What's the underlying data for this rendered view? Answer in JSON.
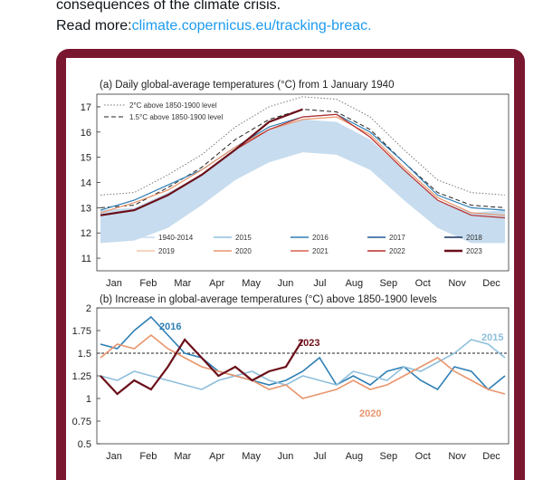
{
  "post": {
    "text_line1": "consequences of the climate crisis.",
    "read_more_label": "Read more:",
    "link_text": "climate.copernicus.eu/tracking-breac."
  },
  "colors": {
    "frame": "#7a1730",
    "link": "#1d9bf0",
    "band_1940_2014": "#c7dcee",
    "y2015": "#8fbfdc",
    "y2016": "#2f7fb5",
    "y2017": "#1f5b95",
    "y2018": "#14305e",
    "y2019": "#f3c5a8",
    "y2020": "#e9956c",
    "y2021": "#d9624e",
    "y2022": "#b92e2e",
    "y2023": "#6b0f1a"
  },
  "chart_data": [
    {
      "type": "line",
      "title": "(a) Daily global-average temperatures (°C) from 1 January 1940",
      "x_tick_labels": [
        "Jan",
        "Feb",
        "Mar",
        "Apr",
        "May",
        "Jun",
        "Jul",
        "Aug",
        "Sep",
        "Oct",
        "Nov",
        "Dec"
      ],
      "y_tick_labels": [
        "11",
        "12",
        "13",
        "14",
        "15",
        "16",
        "17"
      ],
      "ylim": [
        10.5,
        17.5
      ],
      "reference_lines": [
        {
          "name": "2°C above 1850-1900 level",
          "style": "dotted",
          "values": [
            13.5,
            13.6,
            14.3,
            15.1,
            16.2,
            17.0,
            17.4,
            17.3,
            16.6,
            15.3,
            14.1,
            13.6,
            13.5
          ]
        },
        {
          "name": "1.5°C above 1850-1900 level",
          "style": "dashed",
          "values": [
            13.0,
            13.1,
            13.8,
            14.6,
            15.7,
            16.5,
            16.9,
            16.8,
            16.1,
            14.8,
            13.6,
            13.1,
            13.0
          ]
        }
      ],
      "legend": [
        {
          "label": "1940-2014",
          "color_key": "band_1940_2014"
        },
        {
          "label": "2015",
          "color_key": "y2015"
        },
        {
          "label": "2016",
          "color_key": "y2016"
        },
        {
          "label": "2017",
          "color_key": "y2017"
        },
        {
          "label": "2018",
          "color_key": "y2018"
        },
        {
          "label": "2019",
          "color_key": "y2019"
        },
        {
          "label": "2020",
          "color_key": "y2020"
        },
        {
          "label": "2021",
          "color_key": "y2021"
        },
        {
          "label": "2022",
          "color_key": "y2022"
        },
        {
          "label": "2023",
          "color_key": "y2023"
        }
      ],
      "band": {
        "name": "1940-2014",
        "upper": [
          12.9,
          13.0,
          13.6,
          14.3,
          15.3,
          16.1,
          16.5,
          16.4,
          15.7,
          14.5,
          13.3,
          12.8,
          12.9
        ],
        "lower": [
          11.6,
          11.7,
          12.2,
          13.1,
          14.1,
          14.8,
          15.2,
          15.1,
          14.5,
          13.3,
          12.2,
          11.6,
          11.6
        ]
      },
      "series": [
        {
          "name": "2016",
          "color_key": "y2016",
          "values": [
            12.9,
            13.3,
            13.9,
            14.5,
            15.4,
            16.2,
            16.6,
            16.7,
            16.0,
            14.8,
            13.5,
            13.0,
            12.9
          ]
        },
        {
          "name": "2020",
          "color_key": "y2020",
          "values": [
            12.8,
            13.2,
            13.7,
            14.5,
            15.4,
            16.1,
            16.5,
            16.6,
            15.9,
            14.6,
            13.4,
            12.8,
            12.7
          ]
        },
        {
          "name": "2022",
          "color_key": "y2022",
          "values": [
            12.7,
            12.9,
            13.5,
            14.3,
            15.3,
            16.1,
            16.6,
            16.7,
            15.8,
            14.5,
            13.3,
            12.7,
            12.6
          ]
        },
        {
          "name": "2023",
          "color_key": "y2023",
          "values": [
            12.7,
            12.9,
            13.5,
            14.3,
            15.3,
            16.4,
            16.9
          ]
        }
      ]
    },
    {
      "type": "line",
      "title": "(b) Increase in global-average temperatures (°C) above 1850-1900 levels",
      "x_tick_labels": [
        "Jan",
        "Feb",
        "Mar",
        "Apr",
        "May",
        "Jun",
        "Jul",
        "Aug",
        "Sep",
        "Oct",
        "Nov",
        "Dec"
      ],
      "y_tick_labels": [
        "0.5",
        "0.75",
        "1",
        "1.25",
        "1.5",
        "1.75",
        "2"
      ],
      "ylim": [
        0.5,
        2.0
      ],
      "reference_line": {
        "value": 1.5,
        "style": "dashed"
      },
      "annotations": [
        "2016",
        "2015",
        "2023",
        "2020"
      ],
      "series": [
        {
          "name": "2016",
          "color_key": "y2016",
          "values": [
            1.6,
            1.55,
            1.75,
            1.9,
            1.7,
            1.5,
            1.45,
            1.3,
            1.25,
            1.2,
            1.15,
            1.2,
            1.3,
            1.45,
            1.15,
            1.25,
            1.15,
            1.3,
            1.35,
            1.2,
            1.1,
            1.35,
            1.3,
            1.1,
            1.25
          ]
        },
        {
          "name": "2015",
          "color_key": "y2015",
          "values": [
            1.25,
            1.2,
            1.3,
            1.25,
            1.2,
            1.15,
            1.1,
            1.2,
            1.25,
            1.3,
            1.2,
            1.15,
            1.25,
            1.2,
            1.15,
            1.3,
            1.25,
            1.2,
            1.35,
            1.3,
            1.4,
            1.5,
            1.65,
            1.6,
            1.45
          ]
        },
        {
          "name": "2020",
          "color_key": "y2020",
          "values": [
            1.45,
            1.6,
            1.55,
            1.7,
            1.55,
            1.45,
            1.35,
            1.3,
            1.25,
            1.2,
            1.1,
            1.15,
            1.0,
            1.05,
            1.1,
            1.2,
            1.1,
            1.15,
            1.25,
            1.35,
            1.45,
            1.3,
            1.2,
            1.1,
            1.05
          ]
        },
        {
          "name": "2023",
          "color_key": "y2023",
          "values": [
            1.25,
            1.05,
            1.2,
            1.1,
            1.35,
            1.65,
            1.45,
            1.25,
            1.35,
            1.2,
            1.3,
            1.35,
            1.65
          ]
        }
      ]
    }
  ]
}
